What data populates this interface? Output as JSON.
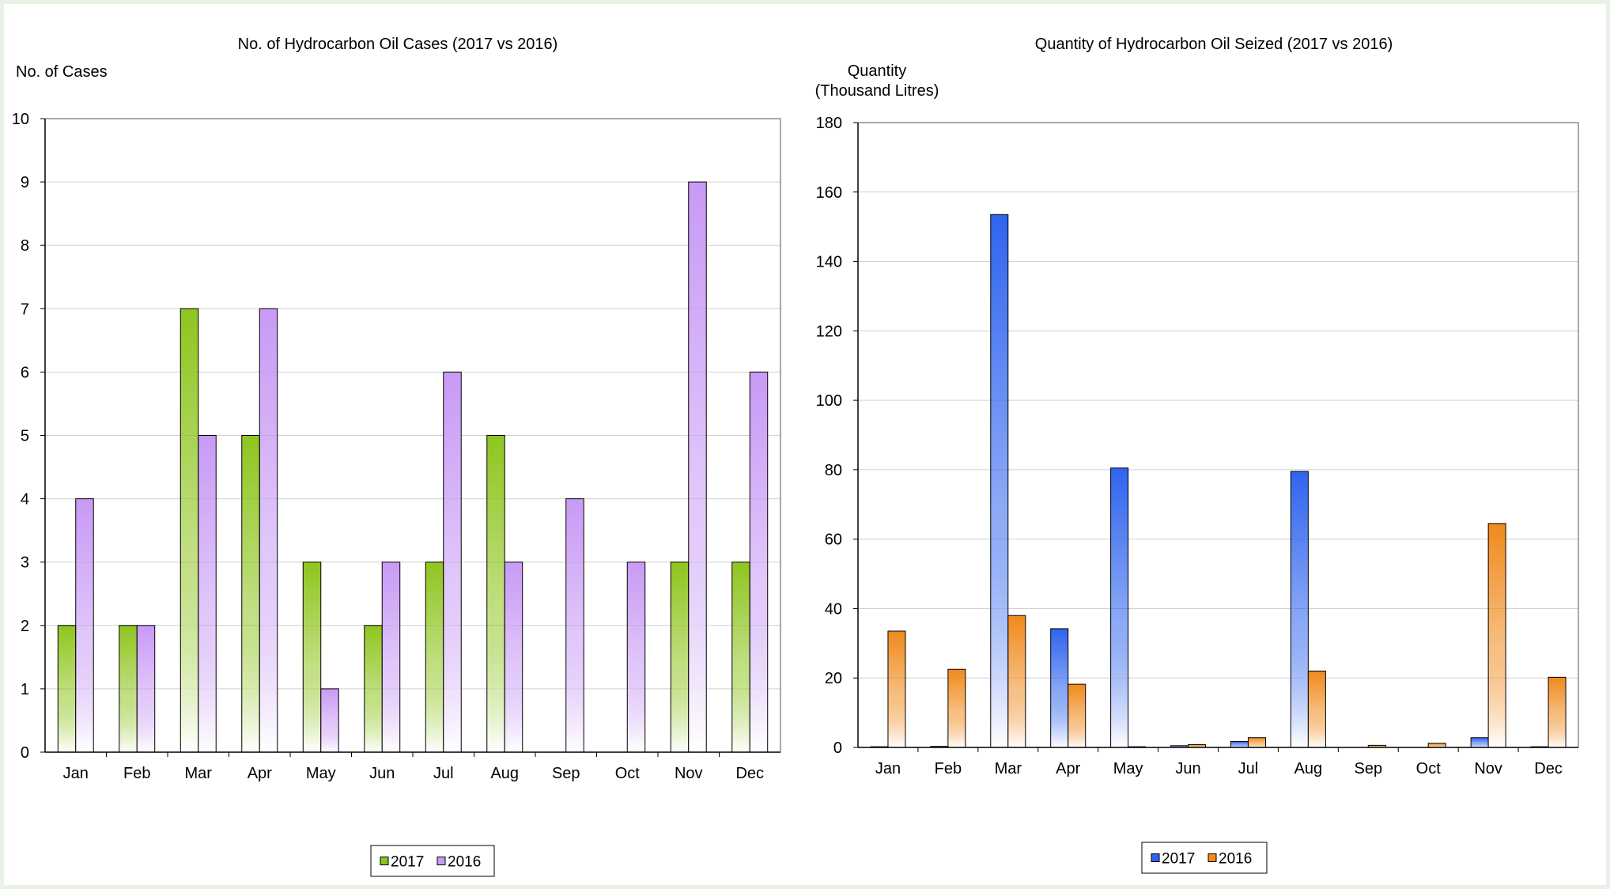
{
  "colors": {
    "page_bg": "#e8f2e6",
    "gridline": "#d0d0d0",
    "cases_2017": "#8fc51f",
    "cases_2016": "#c89af5",
    "qty_2017": "#2f64ee",
    "qty_2016": "#f08a1c"
  },
  "chart_data": [
    {
      "type": "bar",
      "title": "No. of Hydrocarbon Oil Cases (2017 vs 2016)",
      "ylabel": "No. of Cases",
      "ylabel_line2": "",
      "xlabel": "",
      "categories": [
        "Jan",
        "Feb",
        "Mar",
        "Apr",
        "May",
        "Jun",
        "Jul",
        "Aug",
        "Sep",
        "Oct",
        "Nov",
        "Dec"
      ],
      "ylim": [
        0,
        10
      ],
      "yticks": [
        0,
        1,
        2,
        3,
        4,
        5,
        6,
        7,
        8,
        9,
        10
      ],
      "ytick_labels": [
        "0",
        "1",
        "2",
        "3",
        "4",
        "5",
        "6",
        "7",
        "8",
        "9",
        "10"
      ],
      "grid": true,
      "legend_position": "bottom-center",
      "series": [
        {
          "name": "2017",
          "color": "#8fc51f",
          "values": [
            2,
            2,
            7,
            5,
            3,
            2,
            3,
            5,
            0,
            0,
            3,
            3
          ]
        },
        {
          "name": "2016",
          "color": "#c89af5",
          "values": [
            4,
            2,
            5,
            7,
            1,
            3,
            6,
            3,
            4,
            3,
            9,
            6
          ]
        }
      ]
    },
    {
      "type": "bar",
      "title": "Quantity of Hydrocarbon Oil Seized (2017 vs 2016)",
      "ylabel": "Quantity",
      "ylabel_line2": "(Thousand Litres)",
      "xlabel": "",
      "categories": [
        "Jan",
        "Feb",
        "Mar",
        "Apr",
        "May",
        "Jun",
        "Jul",
        "Aug",
        "Sep",
        "Oct",
        "Nov",
        "Dec"
      ],
      "ylim": [
        0,
        180
      ],
      "yticks": [
        0,
        20,
        40,
        60,
        80,
        100,
        120,
        140,
        160,
        180
      ],
      "ytick_labels": [
        "0",
        "20",
        "40",
        "60",
        "80",
        "100",
        "120",
        "140",
        "160",
        "180"
      ],
      "grid": true,
      "legend_position": "bottom-center",
      "series": [
        {
          "name": "2017",
          "color": "#2f64ee",
          "values": [
            0.2,
            0.3,
            153.5,
            34.2,
            80.5,
            0.5,
            1.7,
            79.5,
            0,
            0,
            2.8,
            0.2
          ]
        },
        {
          "name": "2016",
          "color": "#f08a1c",
          "values": [
            33.5,
            22.5,
            38,
            18.2,
            0.2,
            0.8,
            2.8,
            22,
            0.6,
            1.2,
            64.5,
            20.2
          ]
        }
      ]
    }
  ]
}
